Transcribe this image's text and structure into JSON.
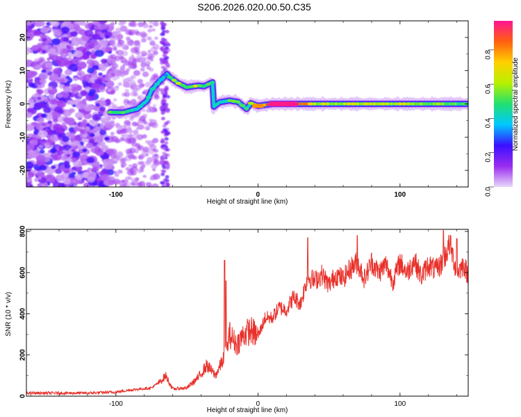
{
  "title": "S206.2026.020.00.50.C35",
  "chart_data": [
    {
      "type": "heatmap",
      "xlabel": "Height of straight line (km)",
      "ylabel": "Frequency (Hz)",
      "xlim": [
        -163,
        148
      ],
      "ylim": [
        -25,
        25
      ],
      "xticks": [
        -100,
        0,
        100
      ],
      "yticks": [
        -20,
        -10,
        0,
        10,
        20
      ],
      "colorbar": {
        "label": "Normalized spectral amplitude",
        "range": [
          0.0,
          0.97
        ],
        "ticks": [
          0.0,
          0.2,
          0.4,
          0.6,
          0.8
        ],
        "colors": [
          "#e8d8f8",
          "#9a2cf0",
          "#3a10ff",
          "#00c8ff",
          "#22e070",
          "#b8f000",
          "#ffd000",
          "#ff6010",
          "#ff1493"
        ]
      },
      "ridge": [
        {
          "x": -105,
          "y": -2.5,
          "a": 0.45
        },
        {
          "x": -95,
          "y": -2.6,
          "a": 0.5
        },
        {
          "x": -85,
          "y": -1.5,
          "a": 0.45
        },
        {
          "x": -78,
          "y": 1.0,
          "a": 0.4
        },
        {
          "x": -75,
          "y": 4.0,
          "a": 0.5
        },
        {
          "x": -70,
          "y": 6.5,
          "a": 0.35
        },
        {
          "x": -64,
          "y": 9.0,
          "a": 0.3
        },
        {
          "x": -62,
          "y": 8.0,
          "a": 0.45
        },
        {
          "x": -56,
          "y": 6.2,
          "a": 0.6
        },
        {
          "x": -50,
          "y": 5.0,
          "a": 0.5
        },
        {
          "x": -42,
          "y": 5.5,
          "a": 0.65
        },
        {
          "x": -38,
          "y": 5.3,
          "a": 0.55
        },
        {
          "x": -32,
          "y": 6.5,
          "a": 0.4
        },
        {
          "x": -33,
          "y": -1.5,
          "a": 0.45
        },
        {
          "x": -27,
          "y": 0.5,
          "a": 0.45
        },
        {
          "x": -20,
          "y": 1.0,
          "a": 0.5
        },
        {
          "x": -14,
          "y": 0.6,
          "a": 0.6
        },
        {
          "x": -8,
          "y": -1.5,
          "a": 0.45
        },
        {
          "x": -5,
          "y": 0.2,
          "a": 0.55
        },
        {
          "x": 0,
          "y": -0.6,
          "a": 0.8
        },
        {
          "x": 10,
          "y": 0.0,
          "a": 0.97
        },
        {
          "x": 20,
          "y": 0.0,
          "a": 0.97
        },
        {
          "x": 40,
          "y": 0.0,
          "a": 0.65
        },
        {
          "x": 60,
          "y": 0.0,
          "a": 0.62
        },
        {
          "x": 80,
          "y": 0.0,
          "a": 0.58
        },
        {
          "x": 100,
          "y": 0.0,
          "a": 0.62
        },
        {
          "x": 120,
          "y": 0.0,
          "a": 0.55
        },
        {
          "x": 140,
          "y": 0.0,
          "a": 0.5
        },
        {
          "x": 148,
          "y": 0.0,
          "a": 0.45
        }
      ]
    },
    {
      "type": "line",
      "xlabel": "Height of straight line (km)",
      "ylabel": "SNR (10 * v/v)",
      "xlim": [
        -163,
        148
      ],
      "ylim": [
        0,
        810
      ],
      "xticks": [
        -100,
        0,
        100
      ],
      "yticks": [
        0,
        200,
        400,
        600,
        800
      ],
      "color": "#e8302a",
      "envelope": [
        {
          "x": -163,
          "y": 15
        },
        {
          "x": -120,
          "y": 15
        },
        {
          "x": -100,
          "y": 20
        },
        {
          "x": -90,
          "y": 30
        },
        {
          "x": -75,
          "y": 40
        },
        {
          "x": -68,
          "y": 75
        },
        {
          "x": -65,
          "y": 100
        },
        {
          "x": -60,
          "y": 35
        },
        {
          "x": -50,
          "y": 40
        },
        {
          "x": -42,
          "y": 90
        },
        {
          "x": -36,
          "y": 150
        },
        {
          "x": -30,
          "y": 100
        },
        {
          "x": -25,
          "y": 170
        },
        {
          "x": -22,
          "y": 220
        },
        {
          "x": -20,
          "y": 300
        },
        {
          "x": -15,
          "y": 250
        },
        {
          "x": -10,
          "y": 300
        },
        {
          "x": -5,
          "y": 320
        },
        {
          "x": 0,
          "y": 290
        },
        {
          "x": 5,
          "y": 380
        },
        {
          "x": 10,
          "y": 380
        },
        {
          "x": 15,
          "y": 430
        },
        {
          "x": 20,
          "y": 420
        },
        {
          "x": 25,
          "y": 480
        },
        {
          "x": 30,
          "y": 450
        },
        {
          "x": 35,
          "y": 580
        },
        {
          "x": 40,
          "y": 560
        },
        {
          "x": 45,
          "y": 590
        },
        {
          "x": 50,
          "y": 540
        },
        {
          "x": 55,
          "y": 590
        },
        {
          "x": 60,
          "y": 570
        },
        {
          "x": 65,
          "y": 620
        },
        {
          "x": 70,
          "y": 650
        },
        {
          "x": 75,
          "y": 570
        },
        {
          "x": 80,
          "y": 650
        },
        {
          "x": 85,
          "y": 600
        },
        {
          "x": 90,
          "y": 640
        },
        {
          "x": 95,
          "y": 560
        },
        {
          "x": 100,
          "y": 650
        },
        {
          "x": 105,
          "y": 600
        },
        {
          "x": 110,
          "y": 660
        },
        {
          "x": 115,
          "y": 580
        },
        {
          "x": 120,
          "y": 640
        },
        {
          "x": 125,
          "y": 610
        },
        {
          "x": 130,
          "y": 650
        },
        {
          "x": 135,
          "y": 740
        },
        {
          "x": 140,
          "y": 600
        },
        {
          "x": 145,
          "y": 640
        },
        {
          "x": 148,
          "y": 580
        }
      ],
      "spikes": [
        {
          "x": -23.5,
          "y": 660
        },
        {
          "x": -22.5,
          "y": 560
        },
        {
          "x": 130.5,
          "y": 805
        },
        {
          "x": 70,
          "y": 780
        },
        {
          "x": 140,
          "y": 765
        },
        {
          "x": 35,
          "y": 770
        }
      ]
    }
  ]
}
